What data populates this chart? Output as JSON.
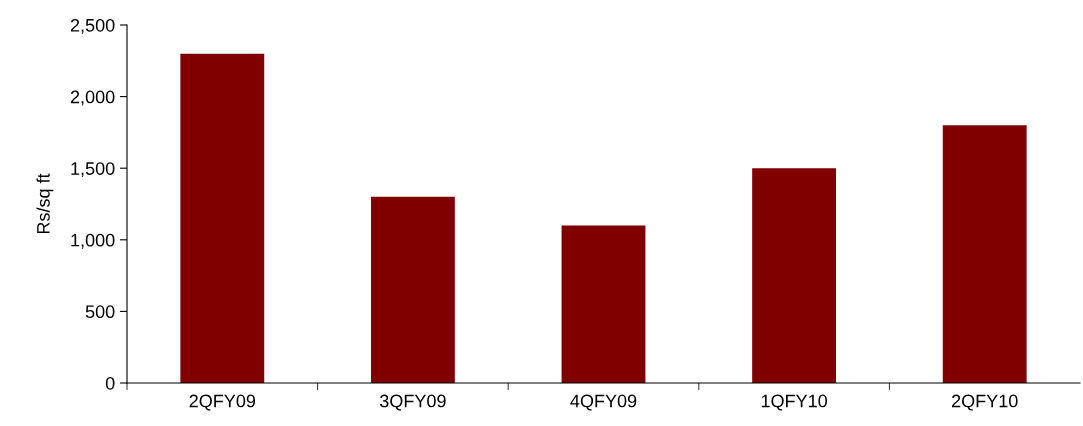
{
  "chart_data": {
    "type": "bar",
    "ylabel": "Rs/sq ft",
    "categories": [
      "2QFY09",
      "3QFY09",
      "4QFY09",
      "1QFY10",
      "2QFY10"
    ],
    "values": [
      2300,
      1300,
      1100,
      1500,
      1800
    ],
    "color": "#800000",
    "ylim": [
      0,
      2500
    ],
    "yticks": [
      {
        "value": 0,
        "label": "0"
      },
      {
        "value": 500,
        "label": "500"
      },
      {
        "value": 1000,
        "label": "1,000"
      },
      {
        "value": 1500,
        "label": "1,500"
      },
      {
        "value": 2000,
        "label": "2,000"
      },
      {
        "value": 2500,
        "label": "2,500"
      }
    ],
    "grid": false
  }
}
